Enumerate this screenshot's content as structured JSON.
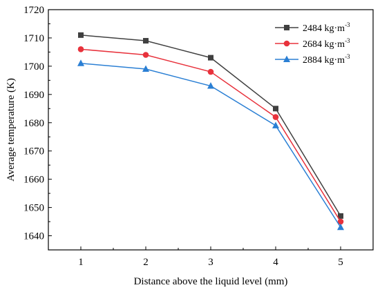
{
  "chart_data": {
    "type": "line",
    "xlabel": "Distance above the liquid level (mm)",
    "ylabel": "Average temperature (K)",
    "x": [
      1,
      2,
      3,
      4,
      5
    ],
    "x_ticks": [
      "1",
      "2",
      "3",
      "4",
      "5"
    ],
    "ylim": [
      1635,
      1720
    ],
    "y_ticks": [
      "1640",
      "1650",
      "1660",
      "1670",
      "1680",
      "1690",
      "1700",
      "1710",
      "1720"
    ],
    "grid": false,
    "legend_position": "top-right",
    "series": [
      {
        "name": "2484 kg·m",
        "name_sup": "-3",
        "color": "#404040",
        "marker": "square",
        "values": [
          1711,
          1709,
          1703,
          1685,
          1647
        ]
      },
      {
        "name": "2684 kg·m",
        "name_sup": "-3",
        "color": "#e8323c",
        "marker": "circle",
        "values": [
          1706,
          1704,
          1698,
          1682,
          1645
        ]
      },
      {
        "name": "2884 kg·m",
        "name_sup": "-3",
        "color": "#2a7fd4",
        "marker": "triangle",
        "values": [
          1701,
          1699,
          1693,
          1679,
          1643
        ]
      }
    ]
  }
}
